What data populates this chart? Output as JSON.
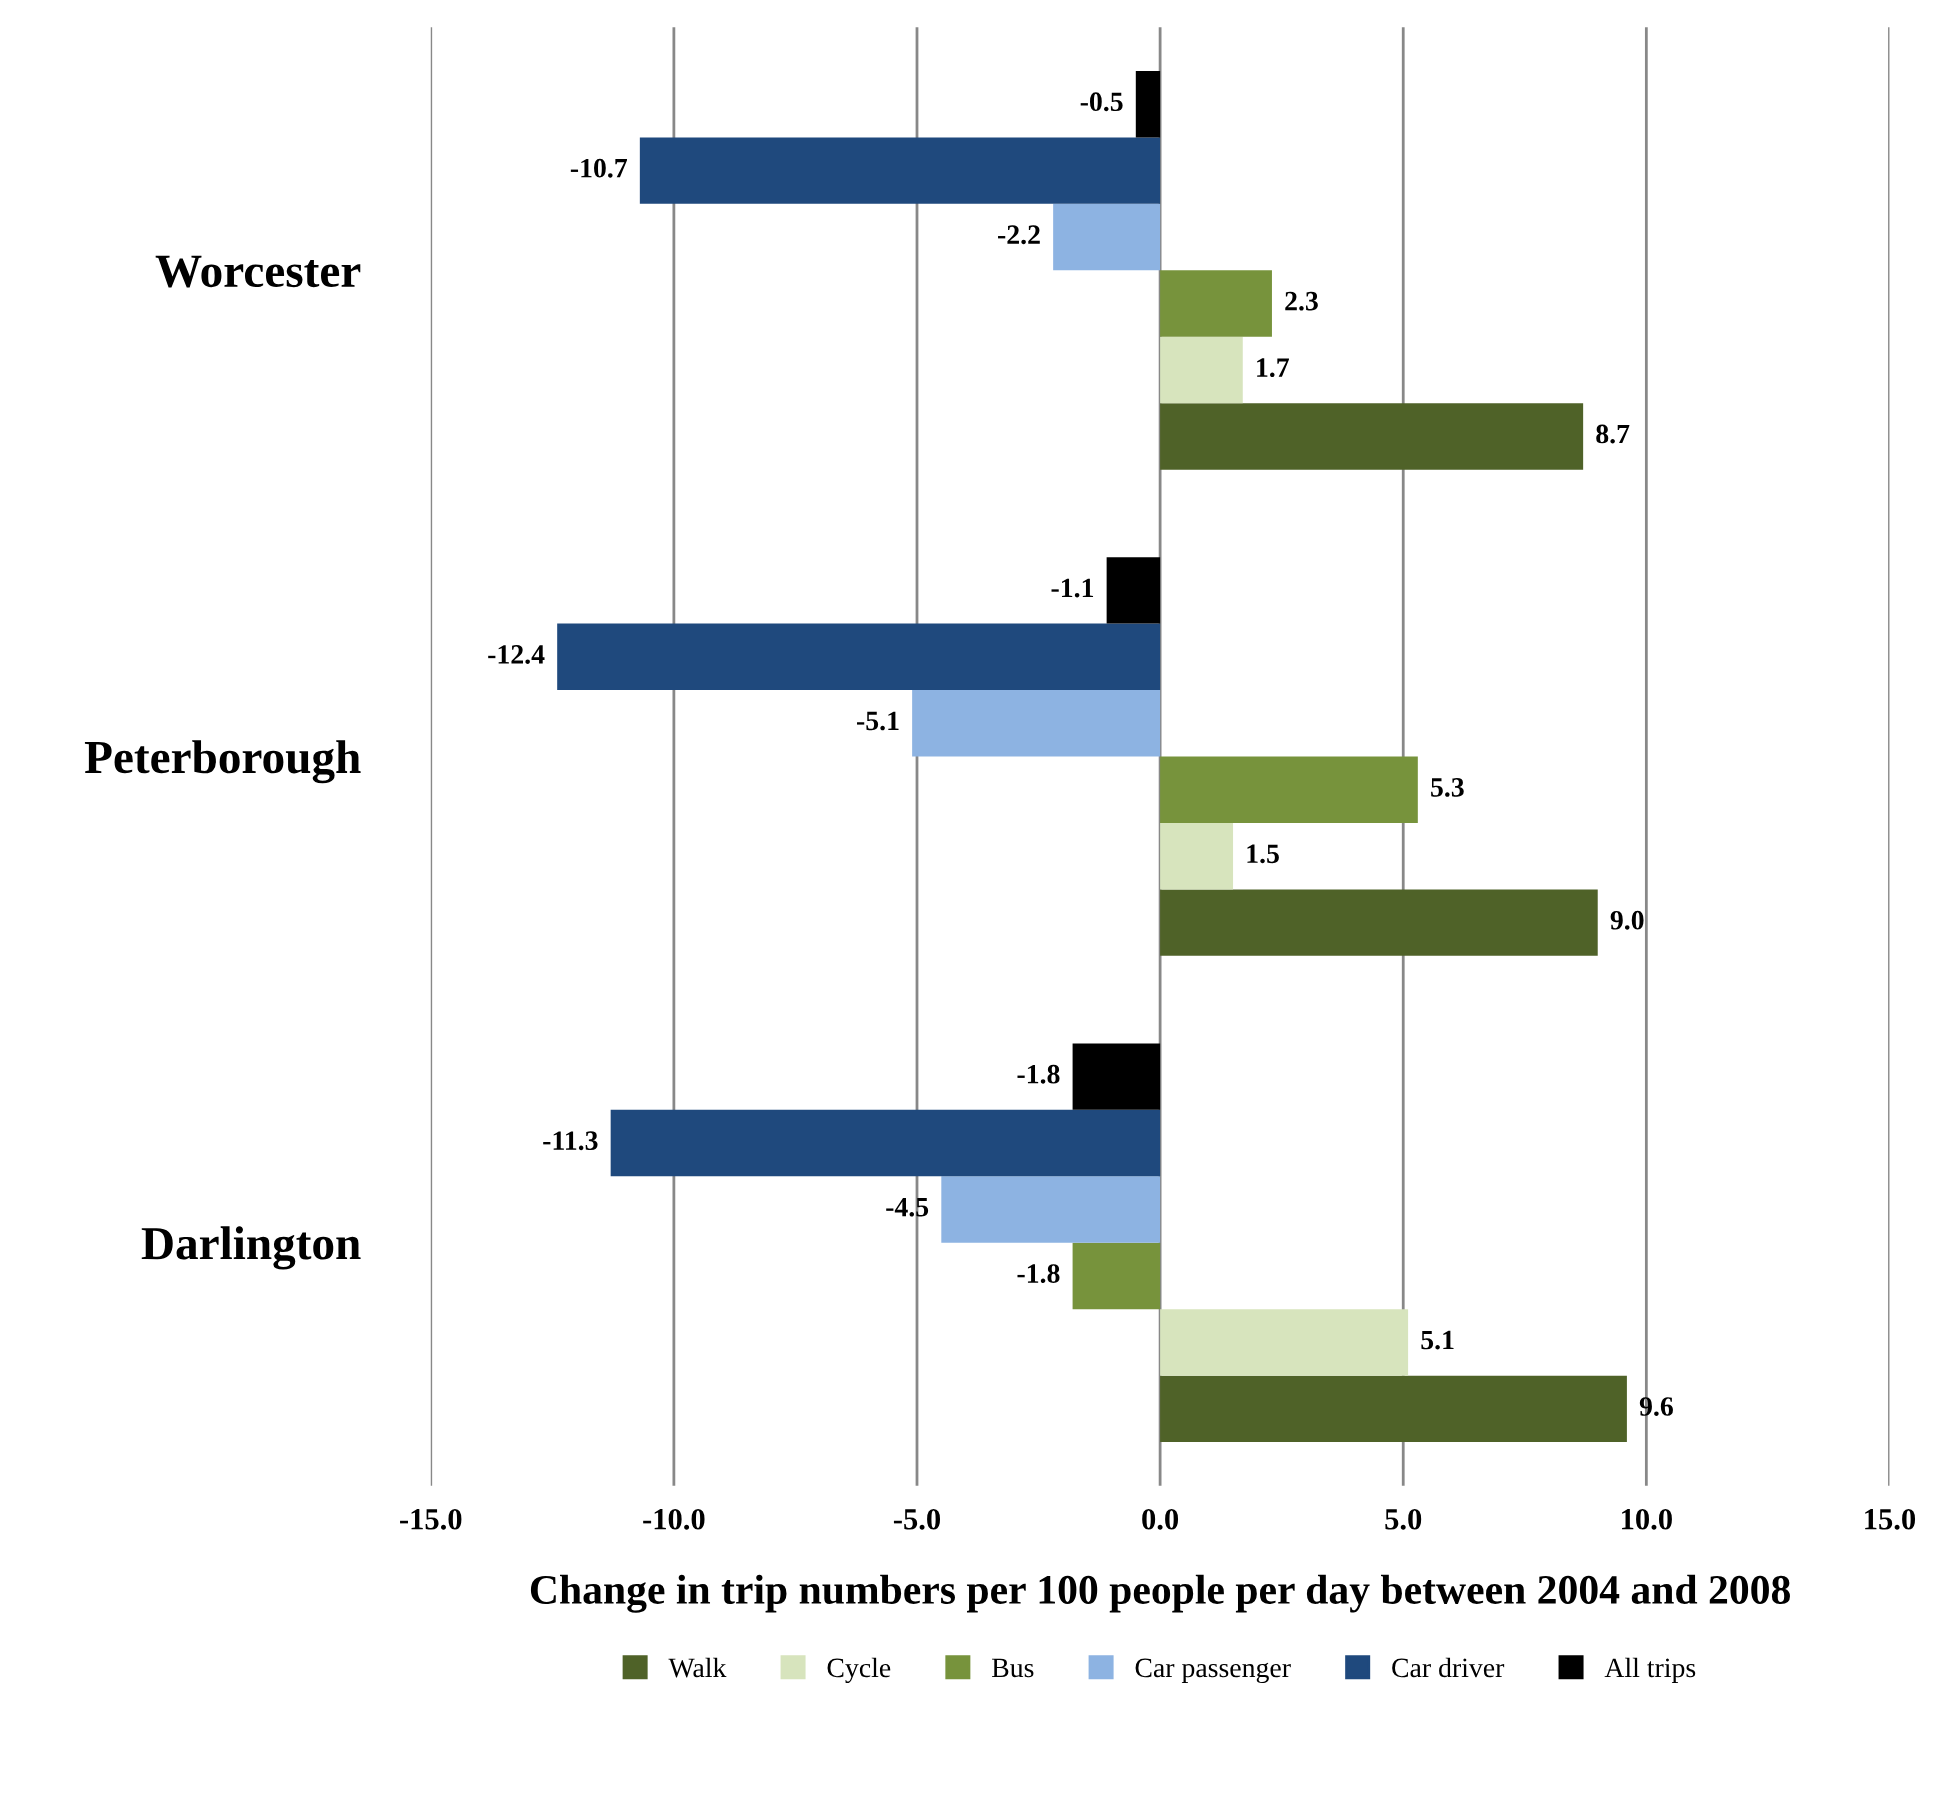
{
  "chart_data": {
    "type": "bar",
    "orientation": "horizontal",
    "xlabel": "Change in trip numbers per 100 people per day between 2004 and 2008",
    "categories": [
      "Worcester",
      "Peterborough",
      "Darlington"
    ],
    "series": [
      {
        "name": "Walk",
        "color": "#4f6228",
        "values": [
          8.7,
          9.0,
          9.6
        ],
        "value_labels": [
          "8.7",
          "9.0",
          "9.6"
        ]
      },
      {
        "name": "Cycle",
        "color": "#d7e4bd",
        "values": [
          1.7,
          1.5,
          5.1
        ],
        "value_labels": [
          "1.7",
          "1.5",
          "5.1"
        ]
      },
      {
        "name": "Bus",
        "color": "#77933c",
        "values": [
          2.3,
          5.3,
          -1.8
        ],
        "value_labels": [
          "2.3",
          "5.3",
          "-1.8"
        ]
      },
      {
        "name": "Car passenger",
        "color": "#8db3e2",
        "values": [
          -2.2,
          -5.1,
          -4.5
        ],
        "value_labels": [
          "-2.2",
          "-5.1",
          "-4.5"
        ]
      },
      {
        "name": "Car driver",
        "color": "#1f497d",
        "values": [
          -10.7,
          -12.4,
          -11.3
        ],
        "value_labels": [
          "-10.7",
          "-12.4",
          "-11.3"
        ]
      },
      {
        "name": "All trips",
        "color": "#000000",
        "values": [
          -0.5,
          -1.1,
          -1.8
        ],
        "value_labels": [
          "-0.5",
          "-1.1",
          "-1.8"
        ]
      }
    ],
    "xlim": [
      -15,
      15
    ],
    "xticks": [
      {
        "value": -15,
        "label": "-15.0"
      },
      {
        "value": -10,
        "label": "-10.0"
      },
      {
        "value": -5,
        "label": "-5.0"
      },
      {
        "value": 0,
        "label": "0.0"
      },
      {
        "value": 5,
        "label": "5.0"
      },
      {
        "value": 10,
        "label": "10.0"
      },
      {
        "value": 15,
        "label": "15.0"
      }
    ],
    "grid": "x",
    "legend": "bottom"
  }
}
